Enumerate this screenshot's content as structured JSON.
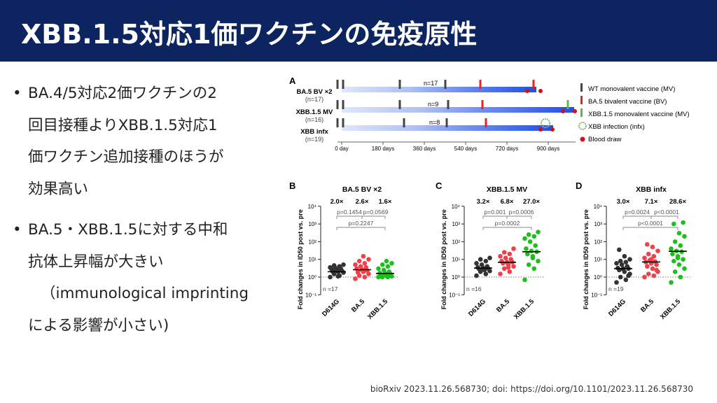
{
  "header": {
    "title": "XBB.1.5対応1価ワクチンの免疫原性"
  },
  "bullets": [
    {
      "marker": "•",
      "lines": [
        "BA.4/5対応2価ワクチンの2",
        "回目接種よりXBB.1.5対応1",
        "価ワクチン追加接種のほうが",
        "効果高い"
      ]
    },
    {
      "marker": "•",
      "lines": [
        "BA.5・XBB.1.5に対する中和",
        "抗体上昇幅が大きい",
        "（immunological imprinting",
        "による影響が小さい)"
      ]
    }
  ],
  "citation": "bioRxiv 2023.11.26.568730; doi: https://doi.org/10.1101/2023.11.26.568730",
  "figure_a": {
    "label": "A",
    "rows": [
      {
        "name": "BA.5 BV ×2",
        "n": "(n=17)",
        "mid": "n=17"
      },
      {
        "name": "XBB.1.5 MV",
        "n": "(n=16)",
        "mid": "n=9"
      },
      {
        "name": "XBB infx",
        "n": "(n=19)",
        "mid": "n=8"
      }
    ],
    "axis": [
      "0 day",
      "180 days",
      "360 days",
      "540 days",
      "720 days",
      "900 days"
    ],
    "legend": [
      "WT monovalent vaccine (MV)",
      "BA.5 bivalent vaccine (BV)",
      "XBB.1.5 monovalent vaccine (MV)",
      "XBB infection (infx)",
      "Blood draw"
    ]
  },
  "colors": {
    "header": "#0c2560",
    "d614g": "#333333",
    "ba5": "#f0404a",
    "xbb": "#1cc01c",
    "bar_dark": "#2a55e0"
  },
  "chart_data": [
    {
      "type": "scatter",
      "label": "B",
      "title": "BA.5 BV ×2",
      "ylabel": "Fold changes in ID50 post vs. pre",
      "yscale": "log",
      "ylim": [
        0.1,
        10000
      ],
      "yticks": [
        "10⁴",
        "10³",
        "10²",
        "10¹",
        "10⁰",
        "10⁻¹"
      ],
      "categories": [
        "D614G",
        "BA.5",
        "XBB.1.5"
      ],
      "folds": [
        "2.0×",
        "2.6×",
        "1.6×"
      ],
      "pvals": [
        "p=0.1454",
        "p=0.0569",
        "p=0.2247"
      ],
      "n": "n =17",
      "medians": [
        2.0,
        2.6,
        1.6
      ],
      "series": [
        [
          1,
          1.2,
          1.5,
          1.8,
          2,
          2,
          2.2,
          2.5,
          2.8,
          3,
          3.2,
          3.5,
          4,
          4.5,
          5,
          1.1,
          2.4
        ],
        [
          0.8,
          1,
          1.2,
          1.5,
          2,
          2,
          2.3,
          2.6,
          3,
          3.5,
          4,
          5,
          6,
          8,
          10,
          15,
          1.8
        ],
        [
          1,
          1,
          1,
          1.1,
          1.2,
          1.3,
          1.5,
          1.6,
          1.7,
          2,
          2.5,
          3,
          4,
          5,
          6,
          8,
          1.4
        ]
      ]
    },
    {
      "type": "scatter",
      "label": "C",
      "title": "XBB.1.5 MV",
      "ylabel": "Fold changes in ID50 post vs. pre",
      "yscale": "log",
      "ylim": [
        0.1,
        10000
      ],
      "yticks": [
        "10⁴",
        "10³",
        "10²",
        "10¹",
        "10⁰",
        "10⁻¹"
      ],
      "categories": [
        "D614G",
        "BA.5",
        "XBB.1.5"
      ],
      "folds": [
        "3.2×",
        "6.8×",
        "27.0×"
      ],
      "pvals": [
        "p=0.001",
        "p=0.0006",
        "p=0.0002"
      ],
      "n": "n =16",
      "medians": [
        3.2,
        6.8,
        27.0
      ],
      "series": [
        [
          1.2,
          1.5,
          2,
          2.2,
          2.5,
          2.8,
          3,
          3.2,
          3.5,
          4,
          5,
          6,
          8,
          10,
          12,
          2.6
        ],
        [
          1.5,
          2,
          3,
          4,
          5,
          6,
          7,
          7,
          8,
          10,
          12,
          15,
          20,
          25,
          40,
          3.5
        ],
        [
          0.7,
          3,
          5,
          8,
          15,
          20,
          27,
          30,
          40,
          60,
          100,
          150,
          200,
          250,
          350,
          12
        ]
      ]
    },
    {
      "type": "scatter",
      "label": "D",
      "title": "XBB infx",
      "ylabel": "Fold changes in ID50 post vs. pre",
      "yscale": "log",
      "ylim": [
        0.1,
        10000
      ],
      "yticks": [
        "10⁴",
        "10³",
        "10²",
        "10¹",
        "10⁰",
        "10⁻¹"
      ],
      "categories": [
        "D614G",
        "BA.5",
        "XBB.1.5"
      ],
      "folds": [
        "3.0×",
        "7.1×",
        "28.6×"
      ],
      "pvals": [
        "p=0.0024",
        "p<0.0001",
        "p<0.0001"
      ],
      "n": "n =19",
      "medians": [
        3.0,
        7.1,
        28.6
      ],
      "series": [
        [
          0.5,
          0.7,
          1,
          1.5,
          2,
          2.5,
          3,
          3,
          3.2,
          4,
          5,
          6,
          7,
          8,
          10,
          15,
          35,
          1.2,
          2.8
        ],
        [
          1,
          1.2,
          1.5,
          2,
          3,
          4,
          5,
          6,
          7,
          7.5,
          9,
          12,
          15,
          20,
          30,
          50,
          70,
          2.5,
          10
        ],
        [
          0.5,
          1,
          2,
          3,
          5,
          8,
          10,
          15,
          20,
          27,
          30,
          40,
          60,
          100,
          200,
          300,
          1000,
          1200,
          12
        ]
      ]
    }
  ]
}
